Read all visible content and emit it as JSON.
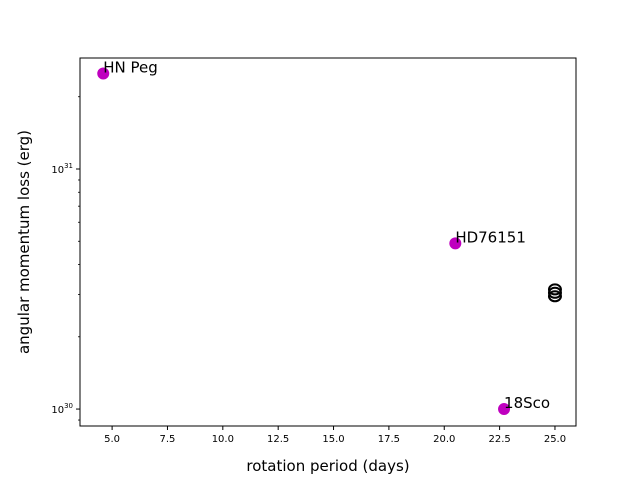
{
  "chart_data": {
    "type": "scatter",
    "title": "",
    "xlabel": "rotation period (days)",
    "ylabel": "angular momentum loss (erg)",
    "xlim": [
      3.55,
      25.95
    ],
    "ylim": [
      8.5e+29,
      2.9e+31
    ],
    "yscale": "log",
    "grid": false,
    "x_ticks": [
      {
        "value": 5.0,
        "label": "5.0"
      },
      {
        "value": 7.5,
        "label": "7.5"
      },
      {
        "value": 10.0,
        "label": "10.0"
      },
      {
        "value": 12.5,
        "label": "12.5"
      },
      {
        "value": 15.0,
        "label": "15.0"
      },
      {
        "value": 17.5,
        "label": "17.5"
      },
      {
        "value": 20.0,
        "label": "20.0"
      },
      {
        "value": 22.5,
        "label": "22.5"
      },
      {
        "value": 25.0,
        "label": "25.0"
      }
    ],
    "y_ticks": [
      {
        "value": 1e+30,
        "base": "10",
        "exp": "30"
      },
      {
        "value": 1e+31,
        "base": "10",
        "exp": "31"
      }
    ],
    "series": [
      {
        "marker": "filled-circle",
        "color": "#bf00bf",
        "points": [
          {
            "x": 4.6,
            "y": 2.5e+31,
            "label": "HN Peg"
          },
          {
            "x": 20.5,
            "y": 4.9e+30,
            "label": "HD76151"
          },
          {
            "x": 22.7,
            "y": 1e+30,
            "label": "18Sco"
          }
        ]
      },
      {
        "marker": "open-circle",
        "color": "#000000",
        "points": [
          {
            "x": 25.0,
            "y": 3.15e+30
          },
          {
            "x": 25.0,
            "y": 3.05e+30
          },
          {
            "x": 25.0,
            "y": 2.95e+30
          }
        ]
      }
    ]
  }
}
